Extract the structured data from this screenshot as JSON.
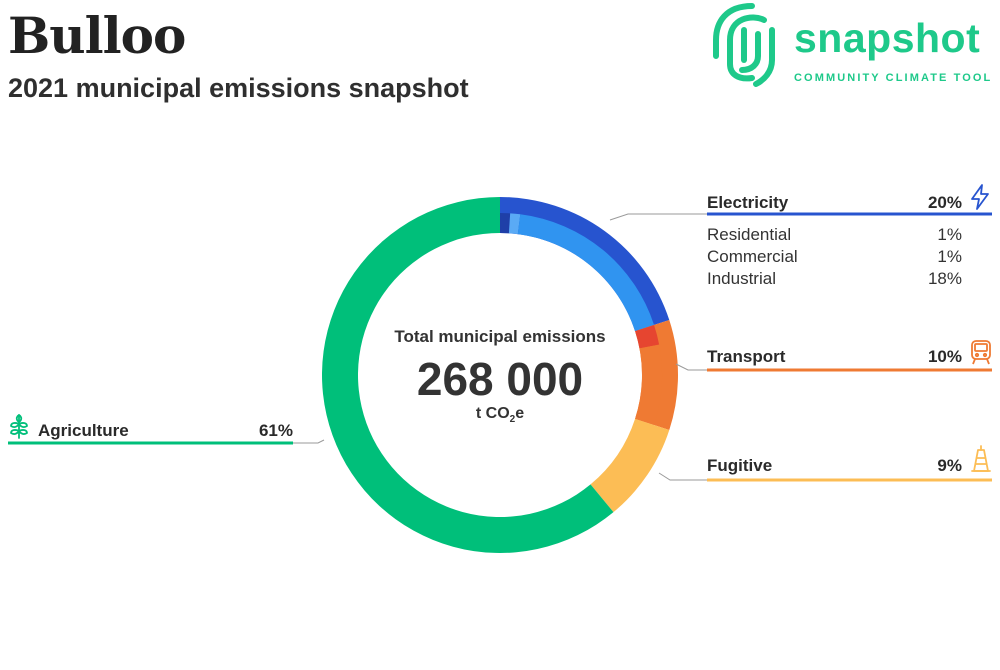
{
  "header": {
    "title": "Bulloo",
    "subtitle": "2021 municipal emissions snapshot"
  },
  "logo": {
    "wordmark": "snapshot",
    "tagline": "COMMUNITY CLIMATE TOOL",
    "color": "#1ec98a"
  },
  "center": {
    "caption": "Total municipal emissions",
    "value": "268 000",
    "unit_prefix": "t CO",
    "unit_subscript": "2",
    "unit_suffix": "e"
  },
  "chart_data": {
    "type": "pie",
    "title": "",
    "total": 268000,
    "slices": [
      {
        "name": "Electricity",
        "label": "20%",
        "value": 20,
        "color": "#2754cf",
        "icon": "lightning-icon",
        "subcategories": [
          {
            "name": "Residential",
            "label": "1%",
            "value": 1,
            "color": "#1f3fa8"
          },
          {
            "name": "Commercial",
            "label": "1%",
            "value": 1,
            "color": "#5aaaf5"
          },
          {
            "name": "Industrial",
            "label": "18%",
            "value": 18,
            "color": "#3094f0"
          }
        ]
      },
      {
        "name": "Transport",
        "label": "10%",
        "value": 10,
        "color": "#ef7a33",
        "icon": "train-icon",
        "subcategories": [
          {
            "name": "",
            "value": 2,
            "color": "#e64530"
          },
          {
            "name": "",
            "value": 8,
            "color": "#ef7a33"
          }
        ]
      },
      {
        "name": "Fugitive",
        "label": "9%",
        "value": 9,
        "color": "#fcbd55",
        "icon": "oil-rig-icon"
      },
      {
        "name": "Agriculture",
        "label": "61%",
        "value": 61,
        "color": "#00bf7a",
        "icon": "wheat-icon"
      }
    ]
  }
}
